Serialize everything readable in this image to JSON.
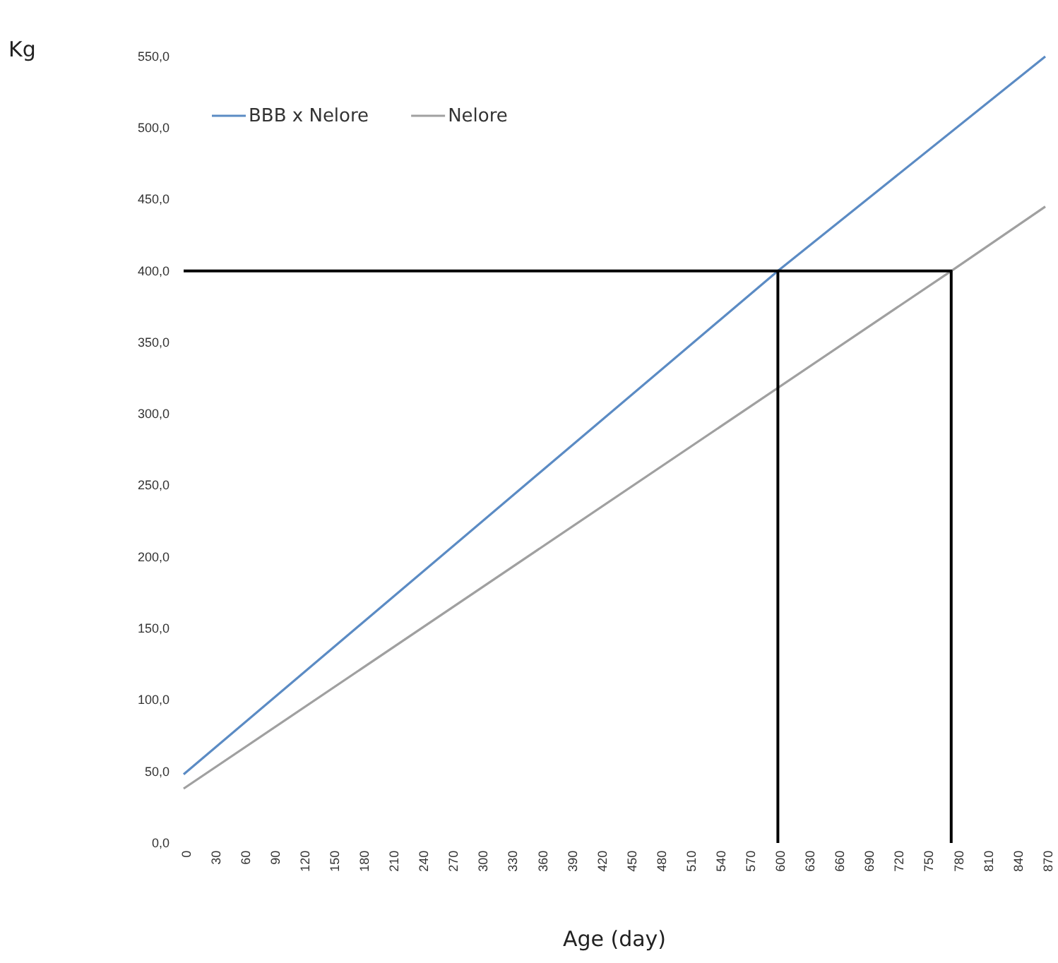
{
  "chart_data": {
    "type": "line",
    "xlabel": "Age (day)",
    "ylabel": "Kg",
    "xlim": [
      0,
      870
    ],
    "xticks": [
      0,
      30,
      60,
      90,
      120,
      150,
      180,
      210,
      240,
      270,
      300,
      330,
      360,
      390,
      420,
      450,
      480,
      510,
      540,
      570,
      600,
      630,
      660,
      690,
      720,
      750,
      780,
      810,
      840,
      870
    ],
    "ylim": [
      0,
      550
    ],
    "yticks": [
      {
        "value": 0,
        "label": "0,0"
      },
      {
        "value": 50,
        "label": "50,0"
      },
      {
        "value": 100,
        "label": "100,0"
      },
      {
        "value": 150,
        "label": "150,0"
      },
      {
        "value": 200,
        "label": "200,0"
      },
      {
        "value": 250,
        "label": "250,0"
      },
      {
        "value": 300,
        "label": "300,0"
      },
      {
        "value": 350,
        "label": "350,0"
      },
      {
        "value": 400,
        "label": "400,0"
      },
      {
        "value": 450,
        "label": "450,0"
      },
      {
        "value": 500,
        "label": "500,0"
      },
      {
        "value": 550,
        "label": "550,0"
      }
    ],
    "legend": "top left",
    "grid": false,
    "series": [
      {
        "name": "BBB x Nelore",
        "color": "#5b8bc4",
        "x": [
          0,
          600,
          870
        ],
        "values": [
          48,
          400,
          550
        ]
      },
      {
        "name": "Nelore",
        "color": "#a0a0a0",
        "x": [
          0,
          775,
          870
        ],
        "values": [
          38,
          400,
          445
        ]
      },
      {
        "color": "#000000",
        "x": [
          0,
          600,
          600
        ],
        "values": [
          400,
          400,
          0
        ]
      },
      {
        "color": "#000000",
        "x": [
          600,
          775,
          775
        ],
        "values": [
          400,
          400,
          0
        ]
      }
    ]
  }
}
